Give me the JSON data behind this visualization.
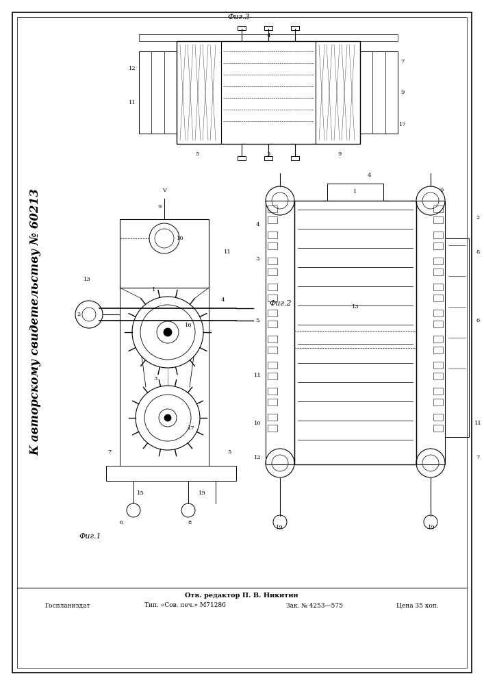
{
  "bg_color": "#ffffff",
  "fig_width": 7.07,
  "fig_height": 10.0,
  "dpi": 100,
  "title_rotated": "К авторскому свидетельству № 60213",
  "footer_editor": "Отв. редактор П. В. Никитин",
  "footer_publisher": "Госпланиздат",
  "footer_printer": "Тип. «Сов. печ.» М71286",
  "footer_order": "Зак. № 4253—575",
  "footer_price": "Цена 35 коп.",
  "fig1_label": "Фиг.1",
  "fig2_label": "Фиг.2",
  "fig3_label": "Фиг.3",
  "border_color": "#000000",
  "line_color": "#000000"
}
